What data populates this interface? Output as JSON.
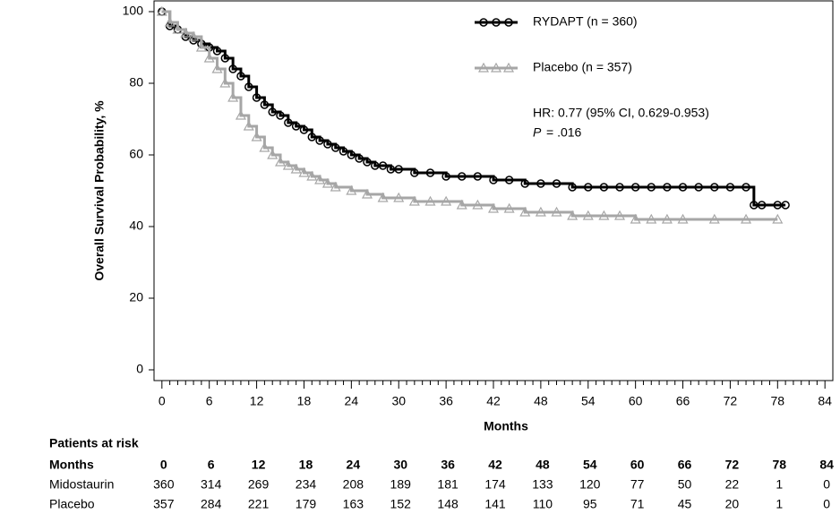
{
  "chart_data": {
    "type": "km",
    "y_label": "Overall Survival Probability, %",
    "x_label": "Months",
    "xlim": [
      -1,
      85
    ],
    "ylim": [
      -3,
      103
    ],
    "xticks": [
      0,
      6,
      12,
      18,
      24,
      30,
      36,
      42,
      48,
      54,
      60,
      66,
      72,
      78,
      84
    ],
    "yticks": [
      0,
      20,
      40,
      60,
      80,
      100
    ],
    "series": [
      {
        "name": "RYDAPT (n = 360)",
        "color": "#000000",
        "marker": "circle",
        "x": [
          0,
          1,
          2,
          3,
          4,
          5,
          6,
          7,
          8,
          9,
          10,
          11,
          12,
          13,
          14,
          15,
          16,
          17,
          18,
          19,
          20,
          21,
          22,
          23,
          24,
          25,
          26,
          27,
          28,
          29,
          30,
          32,
          34,
          36,
          38,
          40,
          42,
          44,
          46,
          48,
          50,
          52,
          54,
          56,
          58,
          60,
          62,
          64,
          66,
          68,
          70,
          72,
          74,
          75,
          76,
          78,
          79
        ],
        "values": [
          100,
          96,
          95,
          93,
          92,
          91,
          90,
          89,
          87,
          84,
          82,
          79,
          76,
          74,
          72,
          71,
          69,
          68,
          67,
          65,
          64,
          63,
          62,
          61,
          60,
          59,
          58,
          57,
          57,
          56,
          56,
          55,
          55,
          54,
          54,
          54,
          53,
          53,
          52,
          52,
          52,
          51,
          51,
          51,
          51,
          51,
          51,
          51,
          51,
          51,
          51,
          51,
          51,
          46,
          46,
          46,
          46
        ]
      },
      {
        "name": "Placebo (n = 357)",
        "color": "#a6a6a6",
        "marker": "triangle",
        "x": [
          0,
          1,
          2,
          3,
          4,
          5,
          6,
          7,
          8,
          9,
          10,
          11,
          12,
          13,
          14,
          15,
          16,
          17,
          18,
          19,
          20,
          21,
          22,
          24,
          26,
          28,
          30,
          32,
          34,
          36,
          38,
          40,
          42,
          44,
          46,
          48,
          50,
          52,
          54,
          56,
          58,
          60,
          62,
          64,
          66,
          70,
          74,
          78
        ],
        "values": [
          100,
          97,
          95,
          94,
          93,
          90,
          87,
          84,
          80,
          76,
          71,
          68,
          65,
          62,
          60,
          58,
          57,
          56,
          55,
          54,
          53,
          52,
          51,
          50,
          49,
          48,
          48,
          47,
          47,
          47,
          46,
          46,
          45,
          45,
          44,
          44,
          44,
          43,
          43,
          43,
          43,
          42,
          42,
          42,
          42,
          42,
          42,
          42
        ]
      }
    ],
    "annotation": {
      "hr": "HR: 0.77 (95% CI, 0.629-0.953)",
      "p_symbol": "P",
      "p_value": "= .016"
    }
  },
  "risk_table": {
    "title": "Patients at risk",
    "header_label": "Months",
    "months": [
      0,
      6,
      12,
      18,
      24,
      30,
      36,
      42,
      48,
      54,
      60,
      66,
      72,
      78,
      84
    ],
    "rows": [
      {
        "label": "Midostaurin",
        "values": [
          360,
          314,
          269,
          234,
          208,
          189,
          181,
          174,
          133,
          120,
          77,
          50,
          22,
          1,
          0
        ]
      },
      {
        "label": "Placebo",
        "values": [
          357,
          284,
          221,
          179,
          163,
          152,
          148,
          141,
          110,
          95,
          71,
          45,
          20,
          1,
          0
        ]
      }
    ]
  }
}
